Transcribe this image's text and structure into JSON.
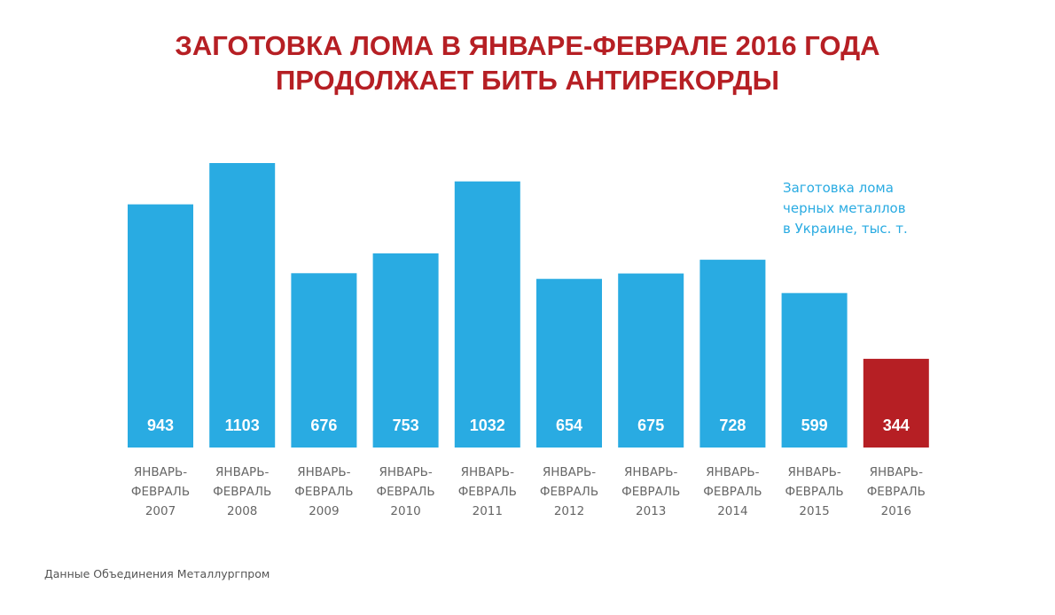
{
  "title": {
    "line1": "ЗАГОТОВКА ЛОМА В ЯНВАРЕ-ФЕВРАЛЕ 2016 ГОДА",
    "line2": "ПРОДОЛЖАЕТ БИТЬ АНТИРЕКОРДЫ"
  },
  "note": {
    "line1": "Заготовка лома",
    "line2": "черных металлов",
    "line3": "в Украине, тыс. т."
  },
  "source": "Данные Объединения Металлургпром",
  "colors": {
    "title": "#b61f24",
    "bar": "#29abe2",
    "highlight": "#b61f24",
    "label": "#666666",
    "value": "#ffffff"
  },
  "chart_data": {
    "type": "bar",
    "title": "ЗАГОТОВКА ЛОМА В ЯНВАРЕ-ФЕВРАЛЕ 2016 ГОДА ПРОДОЛЖАЕТ БИТЬ АНТИРЕКОРДЫ",
    "ylabel": "Заготовка лома черных металлов в Украине, тыс. т.",
    "xlabel": "",
    "ylim": [
      0,
      1103
    ],
    "grid": false,
    "categories": [
      [
        "ЯНВАРЬ-",
        "ФЕВРАЛЬ",
        "2007"
      ],
      [
        "ЯНВАРЬ-",
        "ФЕВРАЛЬ",
        "2008"
      ],
      [
        "ЯНВАРЬ-",
        "ФЕВРАЛЬ",
        "2009"
      ],
      [
        "ЯНВАРЬ-",
        "ФЕВРАЛЬ",
        "2010"
      ],
      [
        "ЯНВАРЬ-",
        "ФЕВРАЛЬ",
        "2011"
      ],
      [
        "ЯНВАРЬ-",
        "ФЕВРАЛЬ",
        "2012"
      ],
      [
        "ЯНВАРЬ-",
        "ФЕВРАЛЬ",
        "2013"
      ],
      [
        "ЯНВАРЬ-",
        "ФЕВРАЛЬ",
        "2014"
      ],
      [
        "ЯНВАРЬ-",
        "ФЕВРАЛЬ",
        "2015"
      ],
      [
        "ЯНВАРЬ-",
        "ФЕВРАЛЬ",
        "2016"
      ]
    ],
    "values": [
      943,
      1103,
      676,
      753,
      1032,
      654,
      675,
      728,
      599,
      344
    ],
    "highlight_index": 9
  }
}
